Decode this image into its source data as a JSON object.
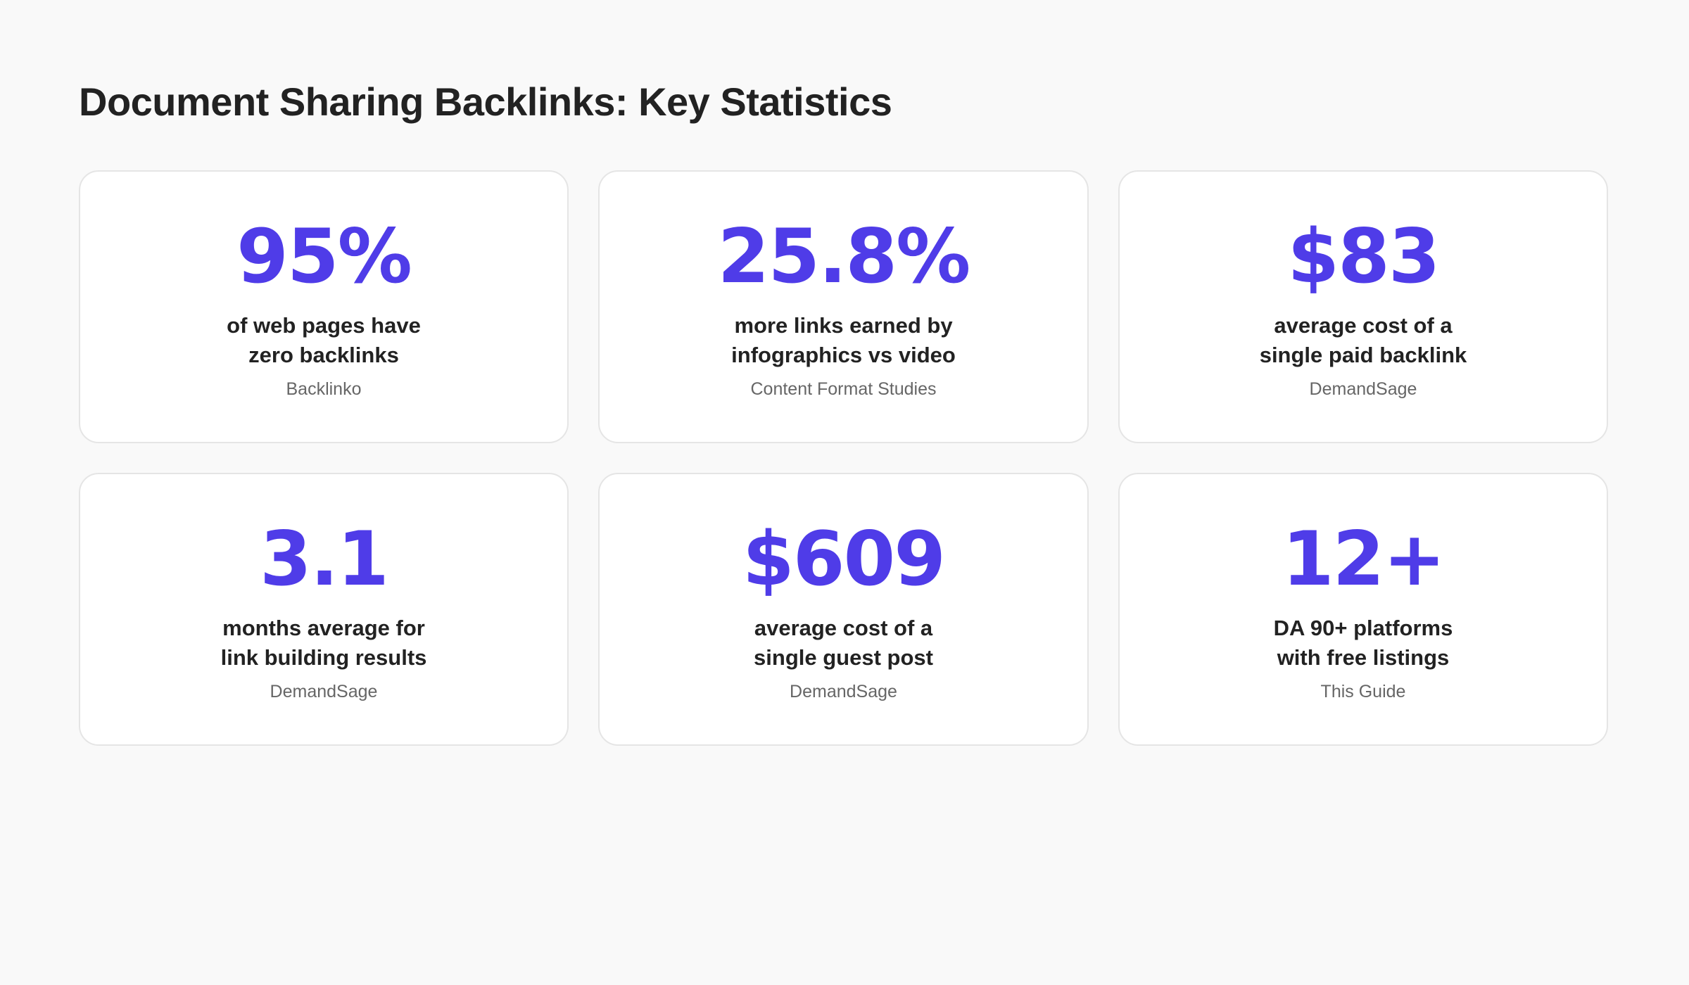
{
  "page": {
    "title": "Document Sharing Backlinks: Key Statistics"
  },
  "colors": {
    "accent": "#4f3ce8",
    "background": "#f9f9f9",
    "card_background": "#ffffff",
    "card_border": "#e5e5e5",
    "text": "#222222",
    "muted_text": "#666666"
  },
  "stats": [
    {
      "value": "95%",
      "label_line1": "of web pages have",
      "label_line2": "zero backlinks",
      "source": "Backlinko"
    },
    {
      "value": "25.8%",
      "label_line1": "more links earned by",
      "label_line2": "infographics vs video",
      "source": "Content Format Studies"
    },
    {
      "value": "$83",
      "label_line1": "average cost of a",
      "label_line2": "single paid backlink",
      "source": "DemandSage"
    },
    {
      "value": "3.1",
      "label_line1": "months average for",
      "label_line2": "link building results",
      "source": "DemandSage"
    },
    {
      "value": "$609",
      "label_line1": "average cost of a",
      "label_line2": "single guest post",
      "source": "DemandSage"
    },
    {
      "value": "12+",
      "label_line1": "DA 90+ platforms",
      "label_line2": "with free listings",
      "source": "This Guide"
    }
  ]
}
